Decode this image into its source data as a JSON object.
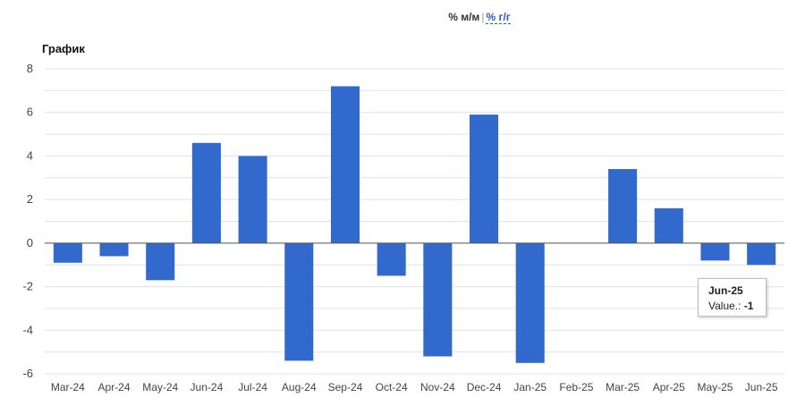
{
  "toggle": {
    "mm_label": "% м/м",
    "separator": "|",
    "yy_label": "% г/г"
  },
  "graph_title": "График",
  "tooltip": {
    "category": "Jun-25",
    "value_label": "Value.:",
    "value": "-1"
  },
  "colors": {
    "bar": "#3169cd",
    "grid": "#e2e2e2",
    "zero_line": "#555555",
    "axis_text": "#444444"
  },
  "chart_data": {
    "type": "bar",
    "title": "",
    "xlabel": "",
    "ylabel": "",
    "categories": [
      "Mar-24",
      "Apr-24",
      "May-24",
      "Jun-24",
      "Jul-24",
      "Aug-24",
      "Sep-24",
      "Oct-24",
      "Nov-24",
      "Dec-24",
      "Jan-25",
      "Feb-25",
      "Mar-25",
      "Apr-25",
      "May-25",
      "Jun-25"
    ],
    "values": [
      -0.9,
      -0.6,
      -1.7,
      4.6,
      4.0,
      -5.4,
      7.2,
      -1.5,
      -5.2,
      5.9,
      -5.5,
      0.0,
      3.4,
      1.6,
      -0.8,
      -1.0
    ],
    "ylim": [
      -6,
      8
    ],
    "yticks": [
      -6,
      -4,
      -2,
      0,
      2,
      4,
      6,
      8
    ],
    "grid": true,
    "legend": "none"
  }
}
